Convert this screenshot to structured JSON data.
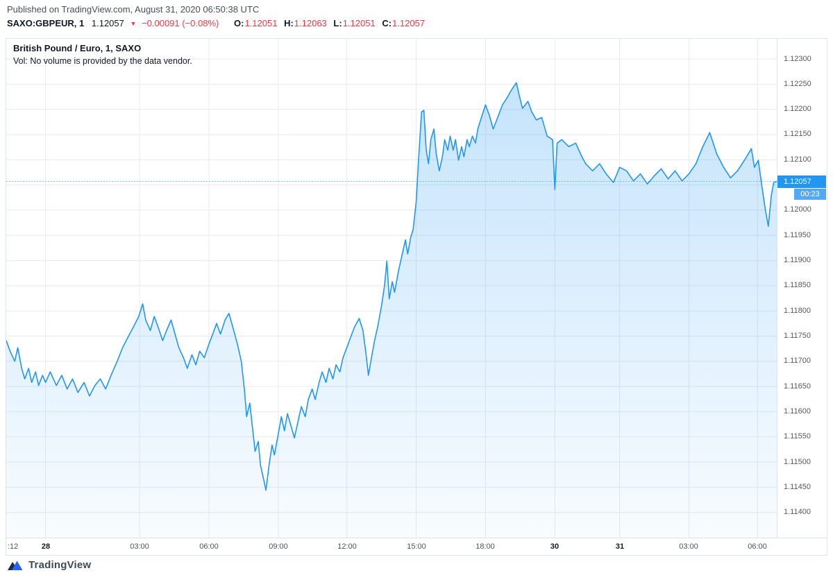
{
  "page": {
    "published_line": "Published on TradingView.com, August 31, 2020 06:50:38 UTC",
    "footer_brand": "TradingView"
  },
  "symbol_header": {
    "symbol": "SAXO:GBPEUR, 1",
    "last_price": "1.12057",
    "direction_icon": "down-triangle",
    "change": "−0.00091 (−0.08%)",
    "ohlc": [
      {
        "label": "O:",
        "value": "1.12051"
      },
      {
        "label": "H:",
        "value": "1.12063"
      },
      {
        "label": "L:",
        "value": "1.12051"
      },
      {
        "label": "C:",
        "value": "1.12057"
      }
    ]
  },
  "legend": {
    "title": "British Pound / Euro, 1, SAXO",
    "vol_note": "Vol: No volume is provided by the data vendor."
  },
  "price_scale": {
    "last_price_label": "1.12057",
    "countdown_label": "00:23"
  },
  "colors": {
    "line": "#2196f3",
    "badge_bg": "#2196f3",
    "countdown_bg": "#56a8f5",
    "down_red": "#f23645",
    "grid": "#e7eaef",
    "logo_dark": "#1e2b45",
    "logo_blue": "#2962ff"
  },
  "chart_data": {
    "type": "area",
    "title": "British Pound / Euro, 1, SAXO",
    "symbol": "SAXO:GBPEUR",
    "interval": "1",
    "xlabel": "time",
    "ylabel": "price",
    "grid": true,
    "legend_position": "top-left",
    "line_color": "#2196f3",
    "grid_color": "#e7eaef",
    "last_price": 1.12057,
    "countdown": "00:23",
    "ohlc": {
      "open": 1.12051,
      "high": 1.12063,
      "low": 1.12051,
      "close": 1.12057
    },
    "change": -0.00091,
    "change_pct": -0.08,
    "ylim": [
      1.1135,
      1.1234
    ],
    "y_ticks": [
      1.123,
      1.1225,
      1.122,
      1.1215,
      1.121,
      1.1205,
      1.12,
      1.1195,
      1.119,
      1.1185,
      1.118,
      1.1175,
      1.117,
      1.1165,
      1.116,
      1.1155,
      1.115,
      1.1145,
      1.114
    ],
    "x_ticks": [
      {
        "label": ":12",
        "t": 0.006,
        "day": false,
        "grid": false
      },
      {
        "label": "28",
        "t": 0.051,
        "day": true,
        "grid": true
      },
      {
        "label": "03:00",
        "t": 0.173,
        "day": false,
        "grid": true
      },
      {
        "label": "06:00",
        "t": 0.263,
        "day": false,
        "grid": true
      },
      {
        "label": "09:00",
        "t": 0.353,
        "day": false,
        "grid": true
      },
      {
        "label": "12:00",
        "t": 0.442,
        "day": false,
        "grid": true
      },
      {
        "label": "15:00",
        "t": 0.532,
        "day": false,
        "grid": true
      },
      {
        "label": "18:00",
        "t": 0.622,
        "day": false,
        "grid": true
      },
      {
        "label": "30",
        "t": 0.712,
        "day": true,
        "grid": true
      },
      {
        "label": "31",
        "t": 0.796,
        "day": true,
        "grid": true
      },
      {
        "label": "03:00",
        "t": 0.886,
        "day": false,
        "grid": true
      },
      {
        "label": "06:00",
        "t": 0.975,
        "day": false,
        "grid": true
      }
    ],
    "series": [
      {
        "name": "GBPEUR",
        "points": [
          [
            0.0,
            1.11741
          ],
          [
            0.005,
            1.1172
          ],
          [
            0.011,
            1.117
          ],
          [
            0.015,
            1.11727
          ],
          [
            0.02,
            1.11686
          ],
          [
            0.024,
            1.11665
          ],
          [
            0.029,
            1.11686
          ],
          [
            0.033,
            1.11658
          ],
          [
            0.038,
            1.11679
          ],
          [
            0.042,
            1.11652
          ],
          [
            0.047,
            1.11672
          ],
          [
            0.051,
            1.11658
          ],
          [
            0.057,
            1.11679
          ],
          [
            0.065,
            1.11652
          ],
          [
            0.072,
            1.11672
          ],
          [
            0.079,
            1.11645
          ],
          [
            0.086,
            1.11665
          ],
          [
            0.093,
            1.11638
          ],
          [
            0.101,
            1.11658
          ],
          [
            0.108,
            1.11631
          ],
          [
            0.115,
            1.11652
          ],
          [
            0.122,
            1.11665
          ],
          [
            0.129,
            1.11645
          ],
          [
            0.136,
            1.11672
          ],
          [
            0.144,
            1.117
          ],
          [
            0.151,
            1.11727
          ],
          [
            0.158,
            1.11748
          ],
          [
            0.165,
            1.11768
          ],
          [
            0.172,
            1.11789
          ],
          [
            0.177,
            1.11814
          ],
          [
            0.181,
            1.11782
          ],
          [
            0.187,
            1.11761
          ],
          [
            0.192,
            1.11789
          ],
          [
            0.197,
            1.11768
          ],
          [
            0.203,
            1.11741
          ],
          [
            0.208,
            1.11761
          ],
          [
            0.214,
            1.11782
          ],
          [
            0.219,
            1.11754
          ],
          [
            0.224,
            1.11727
          ],
          [
            0.23,
            1.11707
          ],
          [
            0.235,
            1.11686
          ],
          [
            0.241,
            1.11713
          ],
          [
            0.246,
            1.11693
          ],
          [
            0.251,
            1.1172
          ],
          [
            0.257,
            1.11707
          ],
          [
            0.263,
            1.11734
          ],
          [
            0.268,
            1.11754
          ],
          [
            0.273,
            1.11775
          ],
          [
            0.278,
            1.11754
          ],
          [
            0.284,
            1.11782
          ],
          [
            0.289,
            1.11795
          ],
          [
            0.294,
            1.11768
          ],
          [
            0.3,
            1.11734
          ],
          [
            0.305,
            1.117
          ],
          [
            0.309,
            1.11645
          ],
          [
            0.312,
            1.1159
          ],
          [
            0.316,
            1.11617
          ],
          [
            0.32,
            1.11562
          ],
          [
            0.323,
            1.11521
          ],
          [
            0.327,
            1.11541
          ],
          [
            0.33,
            1.11493
          ],
          [
            0.334,
            1.11466
          ],
          [
            0.337,
            1.11444
          ],
          [
            0.341,
            1.11493
          ],
          [
            0.345,
            1.11534
          ],
          [
            0.348,
            1.11514
          ],
          [
            0.353,
            1.11555
          ],
          [
            0.357,
            1.1159
          ],
          [
            0.361,
            1.11562
          ],
          [
            0.365,
            1.11596
          ],
          [
            0.37,
            1.11569
          ],
          [
            0.374,
            1.11548
          ],
          [
            0.379,
            1.11583
          ],
          [
            0.383,
            1.1161
          ],
          [
            0.388,
            1.1159
          ],
          [
            0.392,
            1.11624
          ],
          [
            0.397,
            1.11645
          ],
          [
            0.401,
            1.11624
          ],
          [
            0.406,
            1.11658
          ],
          [
            0.41,
            1.11679
          ],
          [
            0.415,
            1.11658
          ],
          [
            0.419,
            1.11686
          ],
          [
            0.424,
            1.11665
          ],
          [
            0.428,
            1.11693
          ],
          [
            0.433,
            1.11679
          ],
          [
            0.437,
            1.11707
          ],
          [
            0.442,
            1.11727
          ],
          [
            0.447,
            1.11748
          ],
          [
            0.452,
            1.11768
          ],
          [
            0.458,
            1.11785
          ],
          [
            0.463,
            1.11761
          ],
          [
            0.467,
            1.11713
          ],
          [
            0.47,
            1.11672
          ],
          [
            0.474,
            1.11707
          ],
          [
            0.478,
            1.11741
          ],
          [
            0.482,
            1.11768
          ],
          [
            0.487,
            1.1181
          ],
          [
            0.491,
            1.11851
          ],
          [
            0.494,
            1.11899
          ],
          [
            0.497,
            1.11824
          ],
          [
            0.501,
            1.11858
          ],
          [
            0.504,
            1.11837
          ],
          [
            0.509,
            1.11879
          ],
          [
            0.513,
            1.11906
          ],
          [
            0.518,
            1.11941
          ],
          [
            0.521,
            1.11913
          ],
          [
            0.525,
            1.11947
          ],
          [
            0.528,
            1.11961
          ],
          [
            0.532,
            1.12016
          ],
          [
            0.535,
            1.12099
          ],
          [
            0.539,
            1.12195
          ],
          [
            0.542,
            1.12198
          ],
          [
            0.545,
            1.12119
          ],
          [
            0.548,
            1.12092
          ],
          [
            0.551,
            1.1214
          ],
          [
            0.555,
            1.12161
          ],
          [
            0.558,
            1.12112
          ],
          [
            0.562,
            1.12078
          ],
          [
            0.566,
            1.12106
          ],
          [
            0.569,
            1.1214
          ],
          [
            0.573,
            1.12119
          ],
          [
            0.576,
            1.12147
          ],
          [
            0.58,
            1.12119
          ],
          [
            0.583,
            1.1214
          ],
          [
            0.587,
            1.12099
          ],
          [
            0.591,
            1.12126
          ],
          [
            0.594,
            1.12106
          ],
          [
            0.598,
            1.1214
          ],
          [
            0.601,
            1.12126
          ],
          [
            0.605,
            1.12147
          ],
          [
            0.609,
            1.12133
          ],
          [
            0.612,
            1.12161
          ],
          [
            0.616,
            1.12181
          ],
          [
            0.622,
            1.12209
          ],
          [
            0.627,
            1.12188
          ],
          [
            0.632,
            1.12161
          ],
          [
            0.637,
            1.12181
          ],
          [
            0.644,
            1.12209
          ],
          [
            0.65,
            1.12223
          ],
          [
            0.655,
            1.12237
          ],
          [
            0.662,
            1.12253
          ],
          [
            0.666,
            1.12226
          ],
          [
            0.67,
            1.12202
          ],
          [
            0.677,
            1.12216
          ],
          [
            0.682,
            1.12195
          ],
          [
            0.688,
            1.12179
          ],
          [
            0.695,
            1.12184
          ],
          [
            0.702,
            1.12147
          ],
          [
            0.709,
            1.1214
          ],
          [
            0.712,
            1.12041
          ],
          [
            0.715,
            1.12133
          ],
          [
            0.721,
            1.1214
          ],
          [
            0.73,
            1.12126
          ],
          [
            0.739,
            1.12133
          ],
          [
            0.747,
            1.12106
          ],
          [
            0.752,
            1.12092
          ],
          [
            0.761,
            1.12078
          ],
          [
            0.77,
            1.12092
          ],
          [
            0.779,
            1.12071
          ],
          [
            0.788,
            1.12055
          ],
          [
            0.796,
            1.12085
          ],
          [
            0.805,
            1.12078
          ],
          [
            0.814,
            1.12058
          ],
          [
            0.823,
            1.12072
          ],
          [
            0.832,
            1.12052
          ],
          [
            0.841,
            1.12068
          ],
          [
            0.85,
            1.12082
          ],
          [
            0.859,
            1.12062
          ],
          [
            0.868,
            1.12078
          ],
          [
            0.877,
            1.12058
          ],
          [
            0.886,
            1.12072
          ],
          [
            0.895,
            1.12092
          ],
          [
            0.904,
            1.12126
          ],
          [
            0.913,
            1.12154
          ],
          [
            0.922,
            1.12112
          ],
          [
            0.931,
            1.12085
          ],
          [
            0.94,
            1.12064
          ],
          [
            0.949,
            1.12078
          ],
          [
            0.958,
            1.12099
          ],
          [
            0.967,
            1.12122
          ],
          [
            0.971,
            1.12085
          ],
          [
            0.976,
            1.12099
          ],
          [
            0.981,
            1.12044
          ],
          [
            0.985,
            1.12003
          ],
          [
            0.989,
            1.11968
          ],
          [
            0.993,
            1.1203
          ],
          [
            0.996,
            1.12055
          ],
          [
            1.0,
            1.12057
          ]
        ]
      }
    ]
  }
}
